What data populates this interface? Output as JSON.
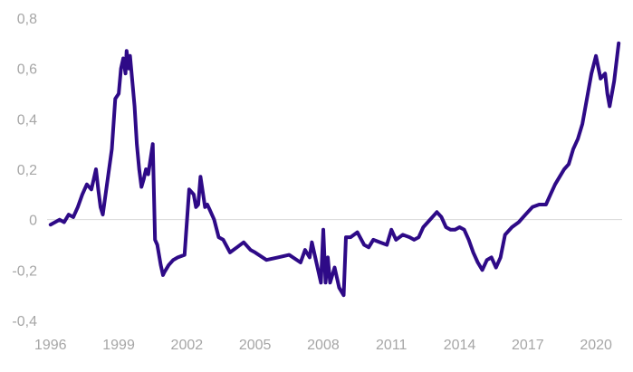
{
  "chart_data": {
    "type": "line",
    "title": "",
    "xlabel": "",
    "ylabel": "",
    "xlim": [
      1995.85,
      2021.15
    ],
    "ylim": [
      -0.4,
      0.8
    ],
    "yticks": [
      -0.4,
      -0.2,
      0,
      0.2,
      0.4,
      0.6,
      0.8
    ],
    "ytick_labels": [
      "-0,4",
      "-0,2",
      "0",
      "0,2",
      "0,4",
      "0,6",
      "0,8"
    ],
    "xticks": [
      1996,
      1999,
      2002,
      2005,
      2008,
      2011,
      2014,
      2017,
      2020
    ],
    "xtick_labels": [
      "1996",
      "1999",
      "2002",
      "2005",
      "2008",
      "2011",
      "2014",
      "2017",
      "2020"
    ],
    "zero_line": true,
    "grid": false,
    "legend": "none",
    "line_color": "#2e0a87",
    "series": [
      {
        "x": [
          1996.0,
          1996.2,
          1996.4,
          1996.6,
          1996.8,
          1997.0,
          1997.2,
          1997.4,
          1997.6,
          1997.8,
          1997.9,
          1998.0,
          1998.1,
          1998.2,
          1998.3,
          1998.5,
          1998.7,
          1998.85,
          1999.0,
          1999.1,
          1999.2,
          1999.3,
          1999.35,
          1999.45,
          1999.5,
          1999.6,
          1999.7,
          1999.8,
          1999.9,
          2000.0,
          2000.1,
          2000.2,
          2000.3,
          2000.5,
          2000.6,
          2000.7,
          2000.85,
          2000.95,
          2001.0,
          2001.2,
          2001.4,
          2001.6,
          2001.9,
          2002.1,
          2002.3,
          2002.4,
          2002.5,
          2002.6,
          2002.8,
          2002.9,
          2003.0,
          2003.2,
          2003.4,
          2003.6,
          2003.9,
          2004.2,
          2004.5,
          2004.8,
          2005.0,
          2005.5,
          2006.0,
          2006.5,
          2007.0,
          2007.2,
          2007.4,
          2007.5,
          2007.7,
          2007.9,
          2008.0,
          2008.1,
          2008.2,
          2008.3,
          2008.5,
          2008.7,
          2008.9,
          2009.0,
          2009.2,
          2009.5,
          2009.8,
          2010.0,
          2010.2,
          2010.5,
          2010.8,
          2011.0,
          2011.2,
          2011.5,
          2011.8,
          2012.0,
          2012.2,
          2012.4,
          2012.6,
          2012.8,
          2013.0,
          2013.2,
          2013.4,
          2013.6,
          2013.8,
          2014.0,
          2014.2,
          2014.4,
          2014.6,
          2014.8,
          2015.0,
          2015.2,
          2015.4,
          2015.6,
          2015.8,
          2016.0,
          2016.3,
          2016.6,
          2016.9,
          2017.2,
          2017.5,
          2017.8,
          2018.0,
          2018.2,
          2018.4,
          2018.6,
          2018.8,
          2019.0,
          2019.2,
          2019.4,
          2019.6,
          2019.8,
          2020.0,
          2020.2,
          2020.4,
          2020.5,
          2020.6,
          2020.8,
          2021.0
        ],
        "values": [
          -0.02,
          -0.01,
          0.0,
          -0.01,
          0.02,
          0.01,
          0.05,
          0.1,
          0.14,
          0.12,
          0.16,
          0.2,
          0.12,
          0.05,
          0.02,
          0.15,
          0.28,
          0.48,
          0.5,
          0.6,
          0.64,
          0.58,
          0.67,
          0.6,
          0.65,
          0.55,
          0.45,
          0.3,
          0.2,
          0.13,
          0.16,
          0.2,
          0.18,
          0.3,
          -0.08,
          -0.1,
          -0.18,
          -0.22,
          -0.21,
          -0.18,
          -0.16,
          -0.15,
          -0.14,
          0.12,
          0.1,
          0.05,
          0.06,
          0.17,
          0.05,
          0.06,
          0.04,
          0.0,
          -0.07,
          -0.08,
          -0.13,
          -0.11,
          -0.09,
          -0.12,
          -0.13,
          -0.16,
          -0.15,
          -0.14,
          -0.17,
          -0.12,
          -0.15,
          -0.09,
          -0.17,
          -0.25,
          -0.04,
          -0.25,
          -0.15,
          -0.25,
          -0.19,
          -0.27,
          -0.3,
          -0.07,
          -0.07,
          -0.05,
          -0.1,
          -0.11,
          -0.08,
          -0.09,
          -0.1,
          -0.04,
          -0.08,
          -0.06,
          -0.07,
          -0.08,
          -0.07,
          -0.03,
          -0.01,
          0.01,
          0.03,
          0.01,
          -0.03,
          -0.04,
          -0.04,
          -0.03,
          -0.04,
          -0.08,
          -0.13,
          -0.17,
          -0.2,
          -0.16,
          -0.15,
          -0.19,
          -0.15,
          -0.06,
          -0.03,
          -0.01,
          0.02,
          0.05,
          0.06,
          0.06,
          0.1,
          0.14,
          0.17,
          0.2,
          0.22,
          0.28,
          0.32,
          0.38,
          0.48,
          0.58,
          0.65,
          0.56,
          0.58,
          0.5,
          0.45,
          0.55,
          0.7
        ]
      }
    ]
  }
}
